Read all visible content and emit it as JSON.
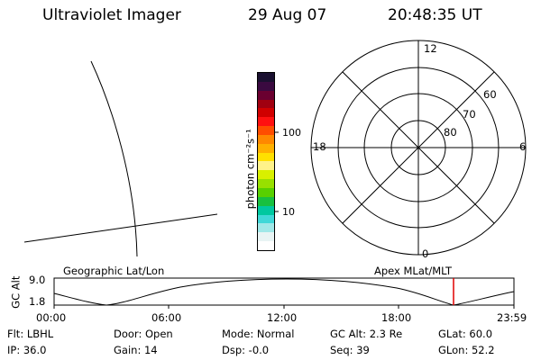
{
  "header": {
    "title": "Ultraviolet Imager",
    "date": "29 Aug 07",
    "time": "20:48:35 UT"
  },
  "colorbar": {
    "unit_label": "photon cm⁻²s⁻¹",
    "tick_100": "100",
    "tick_10": "10",
    "colors": [
      "#1a1030",
      "#3a0a40",
      "#6a0030",
      "#a00010",
      "#d00000",
      "#ff1010",
      "#ff4d00",
      "#ff8800",
      "#ffb000",
      "#ffe000",
      "#fff28a",
      "#d8f000",
      "#98e000",
      "#58d000",
      "#18c040",
      "#00c8a0",
      "#40d8d8",
      "#a0e8e8",
      "#e8f4f4",
      "#ffffff"
    ]
  },
  "polar_plot": {
    "mlt_12": "12",
    "mlt_18": "18",
    "mlt_6": "6",
    "mlt_0": "0",
    "lat_60": "60",
    "lat_70": "70",
    "lat_80": "80"
  },
  "map_panel": {
    "left_label": "Geographic Lat/Lon",
    "right_label": "Apex MLat/MLT"
  },
  "altitude_plot": {
    "axis_label": "GC Alt",
    "y_top": "9.0",
    "y_bottom": "1.8",
    "x_ticks": [
      "00:00",
      "06:00",
      "12:00",
      "18:00",
      "23:59"
    ],
    "marker_color": "#e00000"
  },
  "info": {
    "filter": "Flt: LBHL",
    "door": "Door: Open",
    "mode": "Mode: Normal",
    "gc_alt": "GC Alt: 2.3 Re",
    "glat": "GLat: 60.0",
    "ip": "IP: 36.0",
    "gain": "Gain: 14",
    "dsp": "Dsp:    -0.0",
    "seq": "Seq: 39",
    "glon": "GLon:  52.2"
  }
}
